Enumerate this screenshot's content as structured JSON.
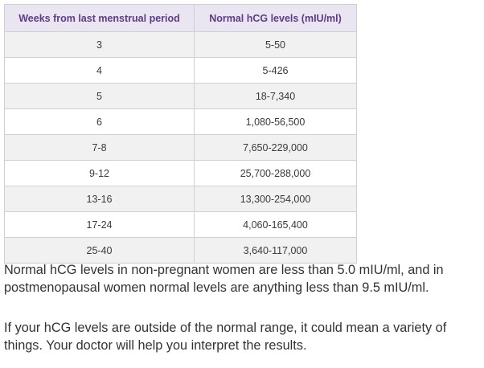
{
  "table": {
    "headers": [
      "Weeks from last menstrual period",
      "Normal hCG levels (mIU/ml)"
    ],
    "rows": [
      [
        "3",
        "5-50"
      ],
      [
        "4",
        "5-426"
      ],
      [
        "5",
        "18-7,340"
      ],
      [
        "6",
        "1,080-56,500"
      ],
      [
        "7-8",
        "7,650-229,000"
      ],
      [
        "9-12",
        "25,700-288,000"
      ],
      [
        "13-16",
        "13,300-254,000"
      ],
      [
        "17-24",
        "4,060-165,400"
      ],
      [
        "25-40",
        "3,640-117,000"
      ]
    ]
  },
  "paragraphs": [
    "Normal hCG levels in non-pregnant women are less than 5.0 mIU/ml, and in postmenopausal women normal levels are anything less than 9.5 mIU/ml.",
    "If your hCG levels are outside of the normal range, it could mean a variety of things. Your doctor will help you interpret the results."
  ],
  "colors": {
    "header_bg": "#e9e5f1",
    "header_text": "#5c3d86",
    "row_shade": "#f1f1f1",
    "border": "#d0d0d0"
  }
}
